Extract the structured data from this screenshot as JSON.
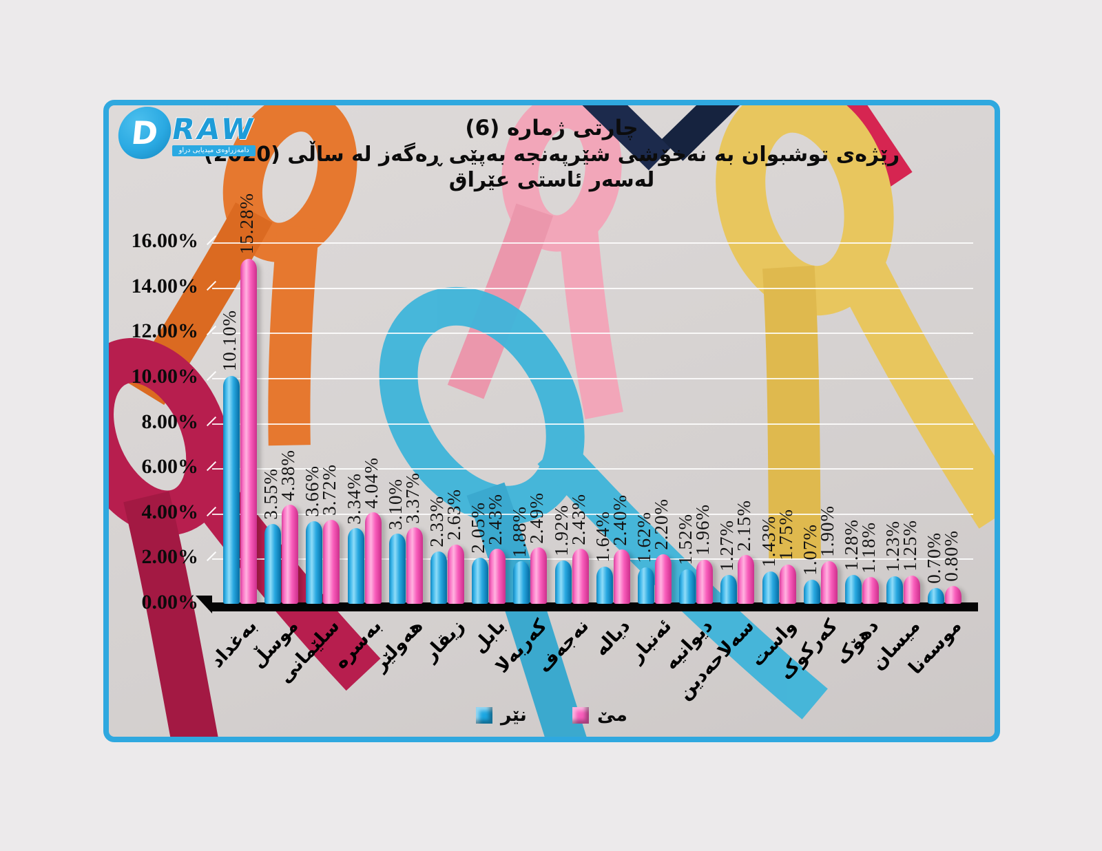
{
  "logo": {
    "d": "D",
    "raw": "RAW",
    "tagline": "دامەزراوەی میدیایی دراو"
  },
  "title": {
    "line1": "چارتی ژماره (6)",
    "line2": "رێژەی توشبوان به نەخۆشی شێرپەنجە بەپێی ڕەگەز له ساڵی (2020)",
    "line3": "لەسەر ئاستی عێراق"
  },
  "chart_data": {
    "type": "bar",
    "title": "رێژەی توشبوان به نەخۆشی شێرپەنجە بەپێی ڕەگەز له ساڵی (2020) لەسەر ئاستی عێراق",
    "categories": [
      "بەغداد",
      "موسڵ",
      "سلێمانی",
      "بەسرە",
      "هەولێر",
      "زیقار",
      "بابل",
      "کەربەلا",
      "نەجەف",
      "دیاله",
      "ئەنبار",
      "دیوانیه",
      "سەلاحەدین",
      "واست",
      "کەرکوک",
      "دهۆک",
      "میسان",
      "موسەنا"
    ],
    "series": [
      {
        "name": "نێر",
        "color": "#1CA7E2",
        "values": [
          10.1,
          3.55,
          3.66,
          3.34,
          3.1,
          2.33,
          2.05,
          1.88,
          1.92,
          1.64,
          1.62,
          1.52,
          1.27,
          1.43,
          1.07,
          1.28,
          1.23,
          0.7
        ]
      },
      {
        "name": "مێ",
        "color": "#F95EBC",
        "values": [
          15.28,
          4.38,
          3.72,
          4.04,
          3.37,
          2.63,
          2.43,
          2.49,
          2.43,
          2.4,
          2.2,
          1.96,
          2.15,
          1.75,
          1.9,
          1.18,
          1.25,
          0.8
        ]
      }
    ],
    "y_ticks": [
      "16.00%",
      "14.00%",
      "12.00%",
      "10.00%",
      "8.00%",
      "6.00%",
      "4.00%",
      "2.00%",
      "0.00%"
    ],
    "ylim": [
      0,
      16
    ],
    "grid": true,
    "legend_position": "bottom",
    "value_label_format": "0.00%"
  },
  "colors": {
    "frame_border": "#2FA8DF",
    "page_background": "#ECEAEB",
    "male_bar": "#1CA7E2",
    "female_bar": "#F95EBC",
    "gridline": "#FFFFFF",
    "axis": "#050505"
  }
}
